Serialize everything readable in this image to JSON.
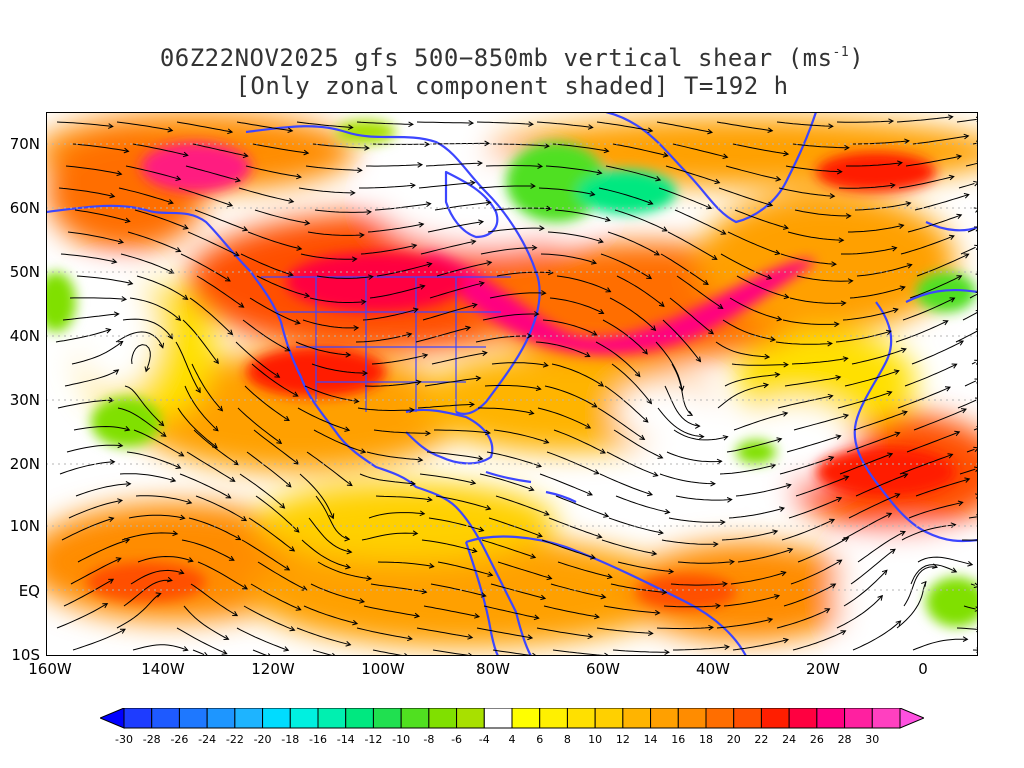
{
  "title": {
    "line1_prefix": "06Z22NOV2025 gfs 500−850mb vertical shear (ms",
    "line1_sup": "-1",
    "line1_suffix": ")",
    "line2": "[Only zonal component shaded] T=192 h"
  },
  "axes": {
    "lat_labels": [
      "70N",
      "60N",
      "50N",
      "40N",
      "30N",
      "20N",
      "10N",
      "EQ",
      "10S"
    ],
    "lon_labels": [
      "160W",
      "140W",
      "120W",
      "100W",
      "80W",
      "60W",
      "40W",
      "20W",
      "0"
    ]
  },
  "colorbar": {
    "labels": [
      "-30",
      "-28",
      "-26",
      "-24",
      "-22",
      "-20",
      "-18",
      "-16",
      "-14",
      "-12",
      "-10",
      "-8",
      "-6",
      "-4",
      "4",
      "6",
      "8",
      "10",
      "12",
      "14",
      "16",
      "18",
      "20",
      "22",
      "24",
      "26",
      "28",
      "30"
    ],
    "colors": [
      "#1e3cff",
      "#1e5aff",
      "#1e78ff",
      "#1e96ff",
      "#1eb4ff",
      "#00dcff",
      "#00f0e0",
      "#00f0b0",
      "#00e880",
      "#20e050",
      "#50e020",
      "#80e000",
      "#a8e000",
      "#ffffff",
      "#ffff00",
      "#fff000",
      "#ffe000",
      "#ffd000",
      "#ffb400",
      "#ffa000",
      "#ff8c00",
      "#ff6e00",
      "#ff5000",
      "#ff1e00",
      "#ff0040",
      "#ff0080",
      "#ff20a0",
      "#ff40c0"
    ],
    "low_color": "#0000ff",
    "high_color": "#ff50e0"
  },
  "map_colors": {
    "coast": "#3c46ff",
    "streamline": "#000000",
    "background": "#ffffff"
  }
}
